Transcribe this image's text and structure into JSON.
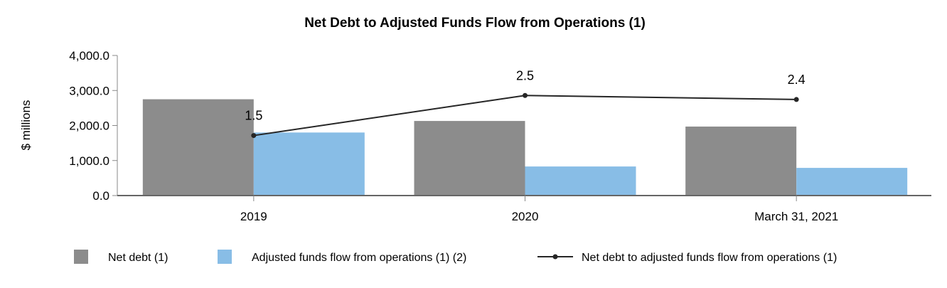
{
  "chart_data": {
    "type": "bar",
    "title": "Net Debt to Adjusted Funds Flow from Operations (1)",
    "ylabel": "$ millions",
    "xlabel": "",
    "ylim": [
      0,
      4000
    ],
    "y2lim": [
      0,
      3.5
    ],
    "y2_axis_visible": false,
    "yticks": [
      "0.0",
      "1,000.0",
      "2,000.0",
      "3,000.0",
      "4,000.0"
    ],
    "ytick_values": [
      0,
      1000,
      2000,
      3000,
      4000
    ],
    "categories": [
      "2019",
      "2020",
      "March 31, 2021"
    ],
    "grid": false,
    "legend_placement": "bottom",
    "series": [
      {
        "name": "Net debt (1)",
        "type": "bar",
        "color": "#8c8c8c",
        "values": [
          2750,
          2130,
          1970
        ]
      },
      {
        "name": "Adjusted funds flow from operations (1) (2)",
        "type": "bar",
        "color": "#88bde6",
        "values": [
          1800,
          830,
          790
        ]
      },
      {
        "name": "Net debt to adjusted funds flow from operations (1)",
        "type": "line",
        "axis": "secondary",
        "color": "#262626",
        "values": [
          1.5,
          2.5,
          2.4
        ],
        "labels": [
          "1.5",
          "2.5",
          "2.4"
        ]
      }
    ]
  }
}
